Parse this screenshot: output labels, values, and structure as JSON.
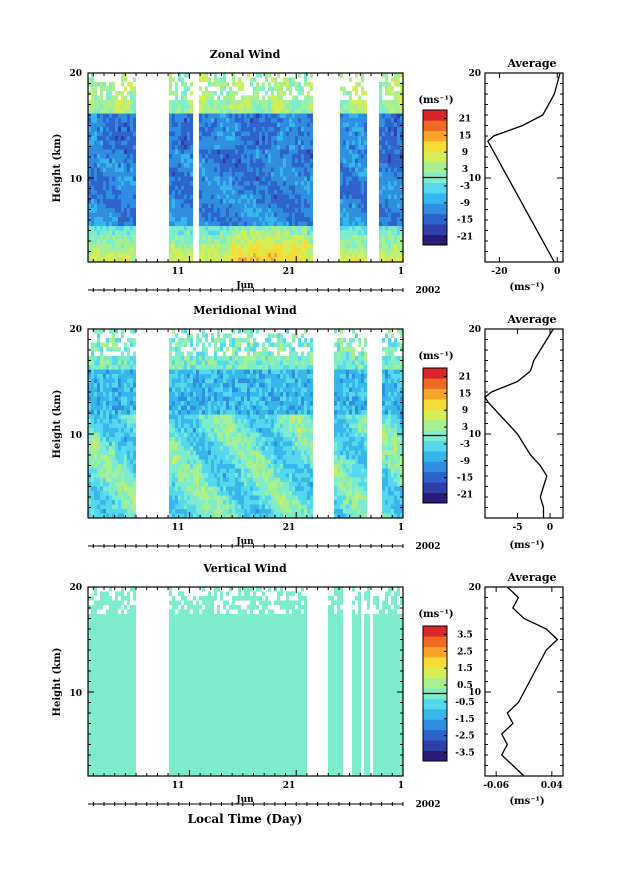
{
  "figure": {
    "xlabel": "Local Time (Day)",
    "month_label": "Jun",
    "year_label": "2002",
    "x_ticks": [
      "11",
      "21",
      "1"
    ],
    "avg_title": "Average",
    "unit": "(ms⁻¹)",
    "avg_xlabel": "(ms⁻¹)"
  },
  "chart_data": [
    {
      "type": "heatmap",
      "title": "Zonal Wind",
      "ylabel": "Height (km)",
      "ylim": [
        2,
        20
      ],
      "y_ticks": [
        "20",
        "10"
      ],
      "colorbar_ticks": [
        "21",
        "15",
        "9",
        "3",
        "-3",
        "-9",
        "-15",
        "-21"
      ],
      "colorbar_range": [
        -24,
        24
      ],
      "data_gaps_day_of_june": [
        [
          6.0,
          9.0
        ],
        [
          11.3,
          11.5
        ],
        [
          11.7,
          11.8
        ],
        [
          22.5,
          25.0
        ],
        [
          27.5,
          28.8
        ]
      ],
      "average_profile": {
        "xlim": [
          -25,
          2
        ],
        "x_ticks": [
          "-20",
          "0"
        ],
        "height_km": [
          2,
          3,
          4,
          5,
          6,
          7,
          8,
          9,
          10,
          11,
          12,
          13,
          13.5,
          14,
          15,
          16,
          17,
          18,
          19,
          20
        ],
        "value": [
          -1,
          -3,
          -5,
          -7,
          -9,
          -11,
          -13,
          -15,
          -17,
          -19,
          -21,
          -23,
          -24,
          -22,
          -12,
          -5,
          -3,
          -1,
          0,
          1
        ]
      }
    },
    {
      "type": "heatmap",
      "title": "Meridional Wind",
      "ylabel": "Height (km)",
      "ylim": [
        2,
        20
      ],
      "y_ticks": [
        "20",
        "10"
      ],
      "colorbar_ticks": [
        "21",
        "15",
        "9",
        "3",
        "-3",
        "-9",
        "-15",
        "-21"
      ],
      "colorbar_range": [
        -24,
        24
      ],
      "data_gaps_day_of_june": [
        [
          6.0,
          9.0
        ],
        [
          22.5,
          24.5
        ],
        [
          27.5,
          29.0
        ]
      ],
      "average_profile": {
        "xlim": [
          -10,
          2
        ],
        "x_ticks": [
          "-5",
          "0"
        ],
        "height_km": [
          2,
          3,
          4,
          5,
          6,
          7,
          8,
          9,
          10,
          11,
          12,
          13,
          13.5,
          14,
          15,
          16,
          17,
          18,
          19,
          20
        ],
        "value": [
          -1,
          -1,
          -1.5,
          -1,
          -0.5,
          -1.5,
          -3,
          -4,
          -5,
          -6.5,
          -8,
          -9.5,
          -10,
          -9,
          -5,
          -3,
          -2.5,
          -1.5,
          -0.5,
          0.5
        ]
      }
    },
    {
      "type": "heatmap",
      "title": "Vertical Wind",
      "ylabel": "Height (km)",
      "ylim": [
        2,
        20
      ],
      "y_ticks": [
        "20",
        "10"
      ],
      "colorbar_ticks": [
        "3.5",
        "2.5",
        "1.5",
        "0.5",
        "-0.5",
        "-1.5",
        "-2.5",
        "-3.5"
      ],
      "colorbar_range": [
        -4,
        4
      ],
      "data_gaps_day_of_june": [
        [
          6.0,
          9.0
        ],
        [
          11.2,
          11.4
        ],
        [
          22.0,
          24.0
        ],
        [
          25.5,
          26.3
        ],
        [
          27.0,
          27.4
        ],
        [
          27.8,
          28.2
        ]
      ],
      "average_profile": {
        "xlim": [
          -0.08,
          0.06
        ],
        "x_ticks": [
          "-0.06",
          "0.04"
        ],
        "height_km": [
          2,
          3,
          4,
          5,
          6,
          7,
          8,
          9,
          10,
          11,
          12,
          13,
          14,
          15,
          16,
          17,
          18,
          19,
          20
        ],
        "value": [
          -0.01,
          -0.03,
          -0.05,
          -0.04,
          -0.05,
          -0.03,
          -0.04,
          -0.02,
          -0.01,
          0.0,
          0.01,
          0.02,
          0.03,
          0.05,
          0.03,
          -0.01,
          -0.03,
          -0.02,
          -0.04
        ]
      }
    }
  ]
}
